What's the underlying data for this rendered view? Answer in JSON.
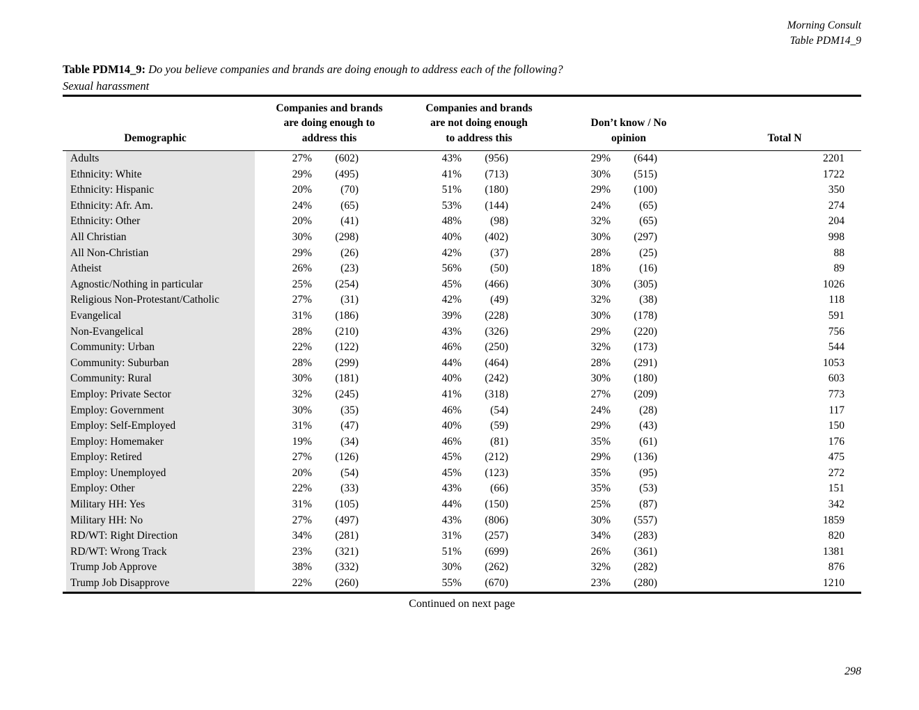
{
  "doc_header": {
    "line1": "Morning Consult",
    "line2": "Table PDM14_9"
  },
  "title": {
    "label": "Table PDM14_9:",
    "question": "Do you believe companies and brands are doing enough to address each of the following?",
    "subtitle": "Sexual harassment"
  },
  "table": {
    "header": {
      "demographic": "Demographic",
      "col1_lines": [
        "Companies and brands",
        "are doing enough to",
        "address this"
      ],
      "col2_lines": [
        "Companies and brands",
        "are not doing enough",
        "to address this"
      ],
      "col3_lines": [
        "Don’t know / No",
        "opinion"
      ],
      "total": "Total N"
    },
    "rows": [
      {
        "demographic": "Adults",
        "c1_pct": "27%",
        "c1_n": "(602)",
        "c2_pct": "43%",
        "c2_n": "(956)",
        "c3_pct": "29%",
        "c3_n": "(644)",
        "total": "2201"
      },
      {
        "demographic": "Ethnicity: White",
        "c1_pct": "29%",
        "c1_n": "(495)",
        "c2_pct": "41%",
        "c2_n": "(713)",
        "c3_pct": "30%",
        "c3_n": "(515)",
        "total": "1722"
      },
      {
        "demographic": "Ethnicity: Hispanic",
        "c1_pct": "20%",
        "c1_n": "(70)",
        "c2_pct": "51%",
        "c2_n": "(180)",
        "c3_pct": "29%",
        "c3_n": "(100)",
        "total": "350"
      },
      {
        "demographic": "Ethnicity: Afr. Am.",
        "c1_pct": "24%",
        "c1_n": "(65)",
        "c2_pct": "53%",
        "c2_n": "(144)",
        "c3_pct": "24%",
        "c3_n": "(65)",
        "total": "274"
      },
      {
        "demographic": "Ethnicity: Other",
        "c1_pct": "20%",
        "c1_n": "(41)",
        "c2_pct": "48%",
        "c2_n": "(98)",
        "c3_pct": "32%",
        "c3_n": "(65)",
        "total": "204"
      },
      {
        "demographic": "All Christian",
        "c1_pct": "30%",
        "c1_n": "(298)",
        "c2_pct": "40%",
        "c2_n": "(402)",
        "c3_pct": "30%",
        "c3_n": "(297)",
        "total": "998"
      },
      {
        "demographic": "All Non-Christian",
        "c1_pct": "29%",
        "c1_n": "(26)",
        "c2_pct": "42%",
        "c2_n": "(37)",
        "c3_pct": "28%",
        "c3_n": "(25)",
        "total": "88"
      },
      {
        "demographic": "Atheist",
        "c1_pct": "26%",
        "c1_n": "(23)",
        "c2_pct": "56%",
        "c2_n": "(50)",
        "c3_pct": "18%",
        "c3_n": "(16)",
        "total": "89"
      },
      {
        "demographic": "Agnostic/Nothing in particular",
        "c1_pct": "25%",
        "c1_n": "(254)",
        "c2_pct": "45%",
        "c2_n": "(466)",
        "c3_pct": "30%",
        "c3_n": "(305)",
        "total": "1026"
      },
      {
        "demographic": "Religious Non-Protestant/Catholic",
        "c1_pct": "27%",
        "c1_n": "(31)",
        "c2_pct": "42%",
        "c2_n": "(49)",
        "c3_pct": "32%",
        "c3_n": "(38)",
        "total": "118"
      },
      {
        "demographic": "Evangelical",
        "c1_pct": "31%",
        "c1_n": "(186)",
        "c2_pct": "39%",
        "c2_n": "(228)",
        "c3_pct": "30%",
        "c3_n": "(178)",
        "total": "591"
      },
      {
        "demographic": "Non-Evangelical",
        "c1_pct": "28%",
        "c1_n": "(210)",
        "c2_pct": "43%",
        "c2_n": "(326)",
        "c3_pct": "29%",
        "c3_n": "(220)",
        "total": "756"
      },
      {
        "demographic": "Community: Urban",
        "c1_pct": "22%",
        "c1_n": "(122)",
        "c2_pct": "46%",
        "c2_n": "(250)",
        "c3_pct": "32%",
        "c3_n": "(173)",
        "total": "544"
      },
      {
        "demographic": "Community: Suburban",
        "c1_pct": "28%",
        "c1_n": "(299)",
        "c2_pct": "44%",
        "c2_n": "(464)",
        "c3_pct": "28%",
        "c3_n": "(291)",
        "total": "1053"
      },
      {
        "demographic": "Community: Rural",
        "c1_pct": "30%",
        "c1_n": "(181)",
        "c2_pct": "40%",
        "c2_n": "(242)",
        "c3_pct": "30%",
        "c3_n": "(180)",
        "total": "603"
      },
      {
        "demographic": "Employ: Private Sector",
        "c1_pct": "32%",
        "c1_n": "(245)",
        "c2_pct": "41%",
        "c2_n": "(318)",
        "c3_pct": "27%",
        "c3_n": "(209)",
        "total": "773"
      },
      {
        "demographic": "Employ: Government",
        "c1_pct": "30%",
        "c1_n": "(35)",
        "c2_pct": "46%",
        "c2_n": "(54)",
        "c3_pct": "24%",
        "c3_n": "(28)",
        "total": "117"
      },
      {
        "demographic": "Employ: Self-Employed",
        "c1_pct": "31%",
        "c1_n": "(47)",
        "c2_pct": "40%",
        "c2_n": "(59)",
        "c3_pct": "29%",
        "c3_n": "(43)",
        "total": "150"
      },
      {
        "demographic": "Employ: Homemaker",
        "c1_pct": "19%",
        "c1_n": "(34)",
        "c2_pct": "46%",
        "c2_n": "(81)",
        "c3_pct": "35%",
        "c3_n": "(61)",
        "total": "176"
      },
      {
        "demographic": "Employ: Retired",
        "c1_pct": "27%",
        "c1_n": "(126)",
        "c2_pct": "45%",
        "c2_n": "(212)",
        "c3_pct": "29%",
        "c3_n": "(136)",
        "total": "475"
      },
      {
        "demographic": "Employ: Unemployed",
        "c1_pct": "20%",
        "c1_n": "(54)",
        "c2_pct": "45%",
        "c2_n": "(123)",
        "c3_pct": "35%",
        "c3_n": "(95)",
        "total": "272"
      },
      {
        "demographic": "Employ: Other",
        "c1_pct": "22%",
        "c1_n": "(33)",
        "c2_pct": "43%",
        "c2_n": "(66)",
        "c3_pct": "35%",
        "c3_n": "(53)",
        "total": "151"
      },
      {
        "demographic": "Military HH: Yes",
        "c1_pct": "31%",
        "c1_n": "(105)",
        "c2_pct": "44%",
        "c2_n": "(150)",
        "c3_pct": "25%",
        "c3_n": "(87)",
        "total": "342"
      },
      {
        "demographic": "Military HH: No",
        "c1_pct": "27%",
        "c1_n": "(497)",
        "c2_pct": "43%",
        "c2_n": "(806)",
        "c3_pct": "30%",
        "c3_n": "(557)",
        "total": "1859"
      },
      {
        "demographic": "RD/WT: Right Direction",
        "c1_pct": "34%",
        "c1_n": "(281)",
        "c2_pct": "31%",
        "c2_n": "(257)",
        "c3_pct": "34%",
        "c3_n": "(283)",
        "total": "820"
      },
      {
        "demographic": "RD/WT: Wrong Track",
        "c1_pct": "23%",
        "c1_n": "(321)",
        "c2_pct": "51%",
        "c2_n": "(699)",
        "c3_pct": "26%",
        "c3_n": "(361)",
        "total": "1381"
      },
      {
        "demographic": "Trump Job Approve",
        "c1_pct": "38%",
        "c1_n": "(332)",
        "c2_pct": "30%",
        "c2_n": "(262)",
        "c3_pct": "32%",
        "c3_n": "(282)",
        "total": "876"
      },
      {
        "demographic": "Trump Job Disapprove",
        "c1_pct": "22%",
        "c1_n": "(260)",
        "c2_pct": "55%",
        "c2_n": "(670)",
        "c3_pct": "23%",
        "c3_n": "(280)",
        "total": "1210"
      }
    ]
  },
  "footer": {
    "continued": "Continued on next page",
    "page_number": "298"
  }
}
